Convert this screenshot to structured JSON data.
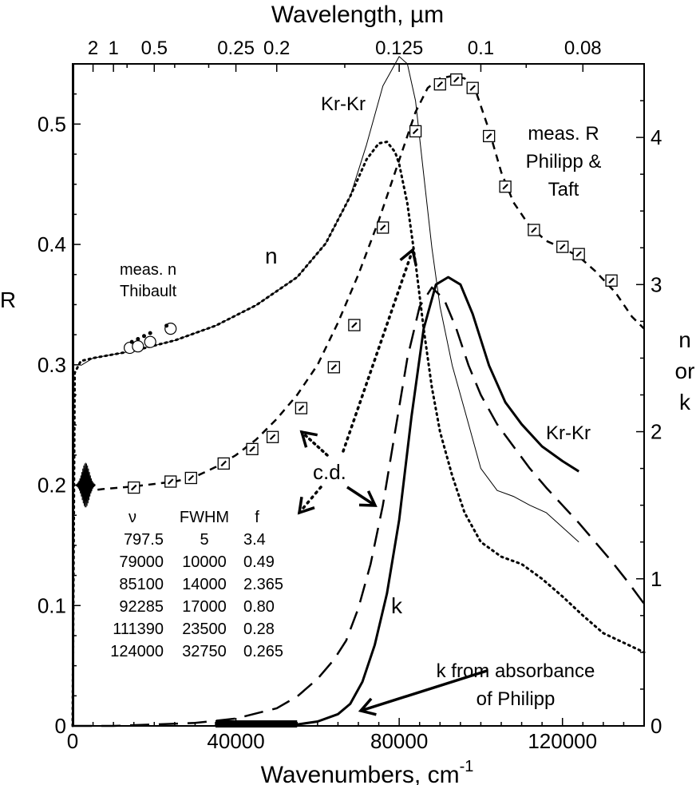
{
  "chart_data": {
    "type": "line",
    "xlabel_main": "Wavenumbers, cm",
    "xlabel_sup": "-1",
    "xlabel_top": "Wavelength, µm",
    "ylabel_left": "R",
    "ylabel_right": [
      "n",
      "or",
      "k"
    ],
    "xlim": [
      0,
      140000
    ],
    "ylim_left": [
      0,
      0.55
    ],
    "ylim_right": [
      0,
      4.5
    ],
    "x_ticks": [
      0,
      40000,
      80000,
      120000
    ],
    "x_tick_labels": [
      "0",
      "40000",
      "80000",
      "120000"
    ],
    "y_left_ticks": [
      0,
      0.1,
      0.2,
      0.3,
      0.4,
      0.5
    ],
    "y_left_tick_labels": [
      "0",
      "0.1",
      "0.2",
      "0.3",
      "0.4",
      "0.5"
    ],
    "y_right_ticks": [
      0,
      1,
      2,
      3,
      4
    ],
    "y_right_tick_labels": [
      "0",
      "1",
      "2",
      "3",
      "4"
    ],
    "top_ticks": [
      {
        "label": "2",
        "um": 2
      },
      {
        "label": "1",
        "um": 1
      },
      {
        "label": "0.5",
        "um": 0.5
      },
      {
        "label": "0.25",
        "um": 0.25
      },
      {
        "label": "0.2",
        "um": 0.2
      },
      {
        "label": "0.125",
        "um": 0.125
      },
      {
        "label": "0.1",
        "um": 0.1
      },
      {
        "label": "0.08",
        "um": 0.08
      }
    ],
    "series": [
      {
        "id": "n_krkr",
        "axis": "right",
        "style": "thin",
        "x": [
          2000,
          5000,
          15000,
          25000,
          35000,
          45000,
          55000,
          62000,
          68000,
          72000,
          76000,
          78000,
          80000,
          82000,
          84000,
          86000,
          88000,
          90000,
          93000,
          96000,
          100000,
          104000,
          108000,
          112000,
          116000,
          120000,
          124000
        ],
        "y": [
          2.45,
          2.5,
          2.55,
          2.62,
          2.72,
          2.86,
          3.05,
          3.28,
          3.6,
          3.95,
          4.35,
          4.45,
          4.55,
          4.5,
          4.25,
          3.75,
          3.25,
          2.85,
          2.45,
          2.15,
          1.75,
          1.6,
          1.56,
          1.5,
          1.45,
          1.35,
          1.25
        ]
      },
      {
        "id": "n_cd",
        "axis": "right",
        "style": "dotted",
        "x": [
          0,
          500,
          2000,
          5000,
          15000,
          25000,
          35000,
          45000,
          55000,
          62000,
          68000,
          72000,
          75000,
          77000,
          79000,
          80000,
          82000,
          84000,
          86000,
          88000,
          90000,
          93000,
          96000,
          100000,
          105000,
          110000,
          115000,
          120000,
          125000,
          130000,
          140000
        ],
        "y": [
          0.0,
          2.4,
          2.48,
          2.5,
          2.55,
          2.62,
          2.72,
          2.86,
          3.05,
          3.28,
          3.6,
          3.85,
          3.96,
          3.97,
          3.9,
          3.82,
          3.55,
          3.15,
          2.7,
          2.3,
          2.0,
          1.7,
          1.45,
          1.25,
          1.15,
          1.1,
          1.0,
          0.88,
          0.75,
          0.63,
          0.5
        ]
      },
      {
        "id": "k_krkr",
        "axis": "right",
        "style": "thick",
        "x": [
          35000,
          45000,
          55000,
          60000,
          65000,
          68000,
          71000,
          74000,
          77000,
          80000,
          83000,
          86000,
          89000,
          92000,
          95000,
          98000,
          102000,
          106000,
          110000,
          115000,
          120000,
          124000
        ],
        "y": [
          0.0,
          0.0,
          0.01,
          0.03,
          0.08,
          0.15,
          0.3,
          0.55,
          0.9,
          1.4,
          2.1,
          2.7,
          3.0,
          3.05,
          3.0,
          2.8,
          2.45,
          2.2,
          2.05,
          1.9,
          1.8,
          1.73
        ]
      },
      {
        "id": "k_cd",
        "axis": "right",
        "style": "longdash",
        "x": [
          0,
          10000,
          20000,
          30000,
          40000,
          50000,
          55000,
          60000,
          64000,
          67000,
          70000,
          73000,
          76000,
          79000,
          82000,
          85000,
          88000,
          91000,
          94000,
          97000,
          100000,
          104000,
          108000,
          112000,
          116000,
          120000,
          124000,
          128000,
          132000,
          136000,
          140000
        ],
        "y": [
          0.0,
          0.0,
          0.01,
          0.02,
          0.05,
          0.12,
          0.2,
          0.32,
          0.45,
          0.58,
          0.8,
          1.1,
          1.5,
          2.0,
          2.5,
          2.85,
          2.98,
          2.9,
          2.7,
          2.45,
          2.25,
          2.05,
          1.9,
          1.75,
          1.62,
          1.5,
          1.38,
          1.25,
          1.12,
          0.98,
          0.83
        ]
      },
      {
        "id": "R_cd",
        "axis": "left",
        "style": "dashed",
        "x": [
          3000,
          8000,
          15000,
          25000,
          30000,
          35000,
          40000,
          45000,
          50000,
          55000,
          60000,
          65000,
          70000,
          75000,
          80000,
          84000,
          87000,
          90000,
          93000,
          96000,
          99000,
          102000,
          105000,
          108000,
          112000,
          116000,
          120000,
          124000,
          128000,
          133000,
          137000,
          140000
        ],
        "y": [
          0.195,
          0.197,
          0.199,
          0.203,
          0.207,
          0.215,
          0.225,
          0.238,
          0.255,
          0.275,
          0.3,
          0.335,
          0.375,
          0.42,
          0.47,
          0.51,
          0.53,
          0.538,
          0.54,
          0.538,
          0.525,
          0.495,
          0.46,
          0.435,
          0.415,
          0.403,
          0.397,
          0.39,
          0.378,
          0.36,
          0.34,
          0.33
        ]
      }
    ],
    "markers_R": [
      {
        "x": 15000,
        "y": 0.198
      },
      {
        "x": 24000,
        "y": 0.203
      },
      {
        "x": 29000,
        "y": 0.206
      },
      {
        "x": 37000,
        "y": 0.218
      },
      {
        "x": 44000,
        "y": 0.23
      },
      {
        "x": 49000,
        "y": 0.24
      },
      {
        "x": 56000,
        "y": 0.264
      },
      {
        "x": 64000,
        "y": 0.298
      },
      {
        "x": 69000,
        "y": 0.333
      },
      {
        "x": 76000,
        "y": 0.414
      },
      {
        "x": 84000,
        "y": 0.494
      },
      {
        "x": 90000,
        "y": 0.533
      },
      {
        "x": 94000,
        "y": 0.537
      },
      {
        "x": 98000,
        "y": 0.53
      },
      {
        "x": 102000,
        "y": 0.49
      },
      {
        "x": 106000,
        "y": 0.448
      },
      {
        "x": 113000,
        "y": 0.412
      },
      {
        "x": 120000,
        "y": 0.398
      },
      {
        "x": 124000,
        "y": 0.392
      },
      {
        "x": 132000,
        "y": 0.37
      }
    ],
    "markers_n_open": [
      {
        "x": 14000,
        "y": 2.57
      },
      {
        "x": 16000,
        "y": 2.58
      },
      {
        "x": 19000,
        "y": 2.61
      },
      {
        "x": 24000,
        "y": 2.7
      }
    ],
    "markers_n_dot": [
      {
        "x": 14500,
        "y": 2.61
      },
      {
        "x": 16000,
        "y": 2.63
      },
      {
        "x": 17500,
        "y": 2.65
      },
      {
        "x": 19000,
        "y": 2.67
      },
      {
        "x": 23000,
        "y": 2.72
      }
    ],
    "absorption_band": {
      "x_from": 35000,
      "x_to": 55000
    },
    "labels": {
      "krkr_top": "Kr-Kr",
      "krkr_right": "Kr-Kr",
      "n": "n",
      "k": "k",
      "meas_n": [
        "meas. n",
        "Thibault"
      ],
      "meas_R": [
        "meas. R",
        "Philipp &",
        "Taft"
      ],
      "cd": "c.d.",
      "k_absorbance": [
        "k from absorbance",
        "of Philipp"
      ]
    },
    "oscillator_table": {
      "headers": [
        "ν",
        "FWHM",
        "f"
      ],
      "rows": [
        [
          "797.5",
          "5",
          "3.4"
        ],
        [
          "79000",
          "10000",
          "0.49"
        ],
        [
          "85100",
          "14000",
          "2.365"
        ],
        [
          "92285",
          "17000",
          "0.80"
        ],
        [
          "111390",
          "23500",
          "0.28"
        ],
        [
          "124000",
          "32750",
          "0.265"
        ]
      ]
    }
  }
}
